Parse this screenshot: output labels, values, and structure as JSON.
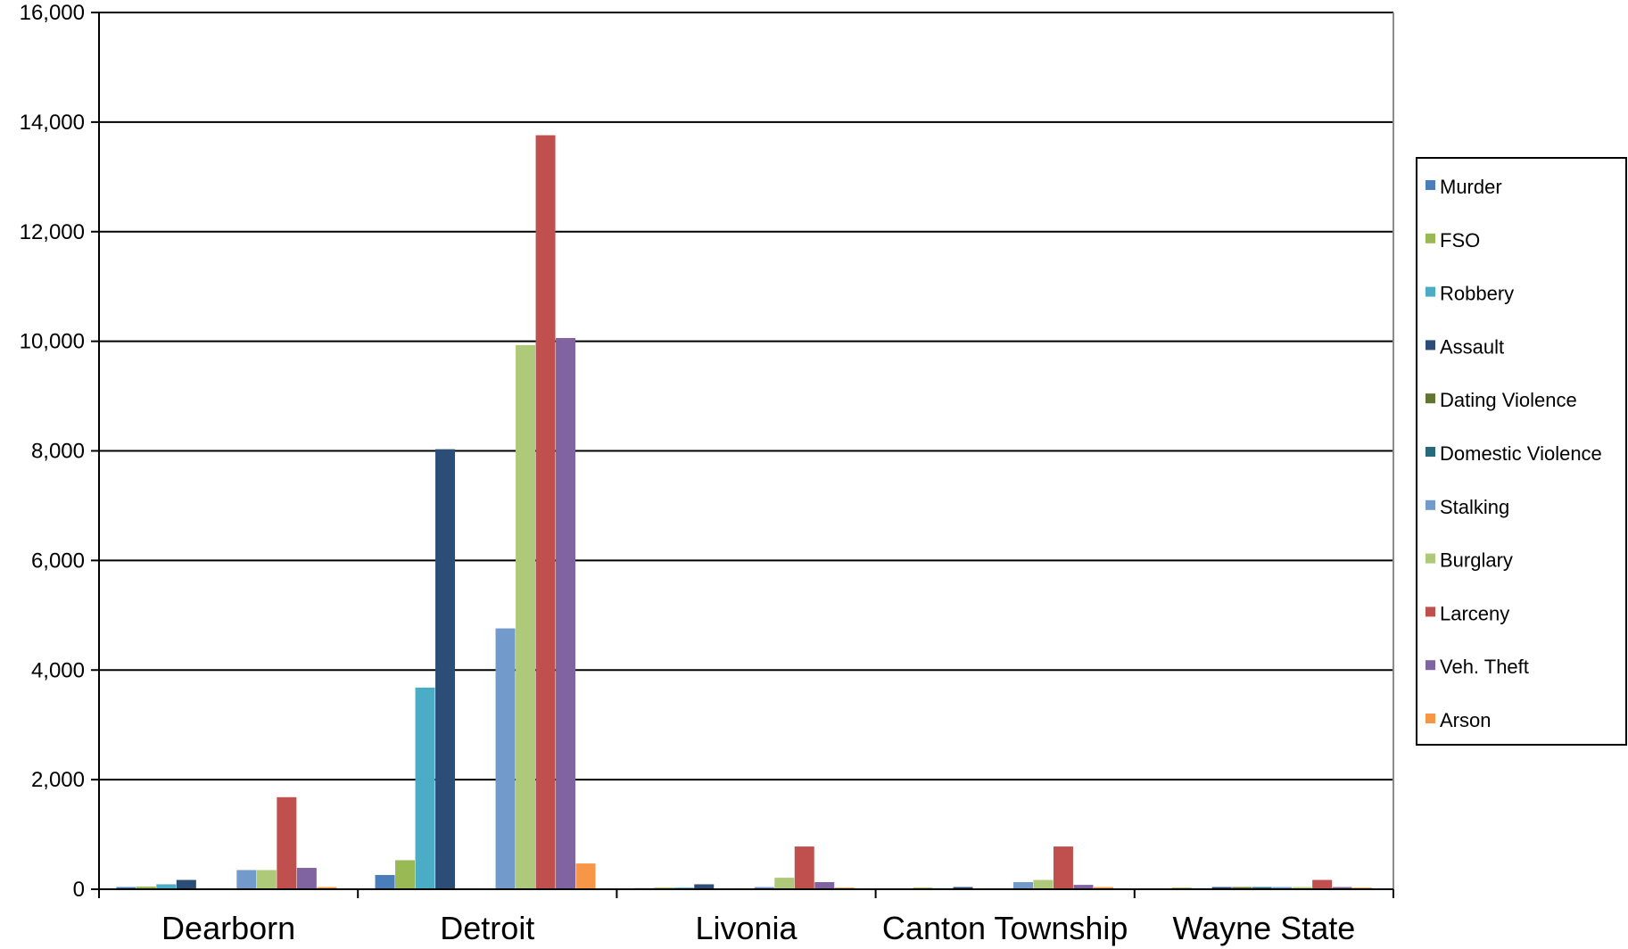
{
  "chart_data": {
    "type": "bar",
    "title": "",
    "xlabel": "",
    "ylabel": "",
    "ylim": [
      0,
      16000
    ],
    "yticks": [
      0,
      2000,
      4000,
      6000,
      8000,
      10000,
      12000,
      14000,
      16000
    ],
    "ytick_labels": [
      "0",
      "2,000",
      "4,000",
      "6,000",
      "8,000",
      "10,000",
      "12,000",
      "14,000",
      "16,000"
    ],
    "grid": true,
    "legend_position": "right",
    "categories": [
      "Dearborn",
      "Detroit",
      "Livonia",
      "Canton Township",
      "Wayne State"
    ],
    "series": [
      {
        "name": "Murder",
        "color": "#4a7ebb",
        "values": [
          40,
          260,
          20,
          10,
          10
        ]
      },
      {
        "name": "FSO",
        "color": "#98b954",
        "values": [
          50,
          530,
          30,
          30,
          30
        ]
      },
      {
        "name": "Robbery",
        "color": "#4bacc6",
        "values": [
          90,
          3680,
          30,
          20,
          20
        ]
      },
      {
        "name": "Assault",
        "color": "#2c4d75",
        "values": [
          170,
          8030,
          90,
          40,
          40
        ]
      },
      {
        "name": "Dating Violence",
        "color": "#5f7530",
        "values": [
          0,
          0,
          0,
          0,
          40
        ]
      },
      {
        "name": "Domestic Violence",
        "color": "#276a7c",
        "values": [
          0,
          0,
          0,
          0,
          40
        ]
      },
      {
        "name": "Stalking",
        "color": "#729aca",
        "values": [
          350,
          4760,
          40,
          130,
          40
        ]
      },
      {
        "name": "Burglary",
        "color": "#afc97a",
        "values": [
          350,
          9930,
          210,
          170,
          40
        ]
      },
      {
        "name": "Larceny",
        "color": "#c0504d",
        "values": [
          1680,
          13760,
          780,
          780,
          170
        ]
      },
      {
        "name": "Veh. Theft",
        "color": "#8064a2",
        "values": [
          390,
          10060,
          130,
          80,
          40
        ]
      },
      {
        "name": "Arson",
        "color": "#f79646",
        "values": [
          40,
          470,
          30,
          40,
          30
        ]
      }
    ]
  }
}
